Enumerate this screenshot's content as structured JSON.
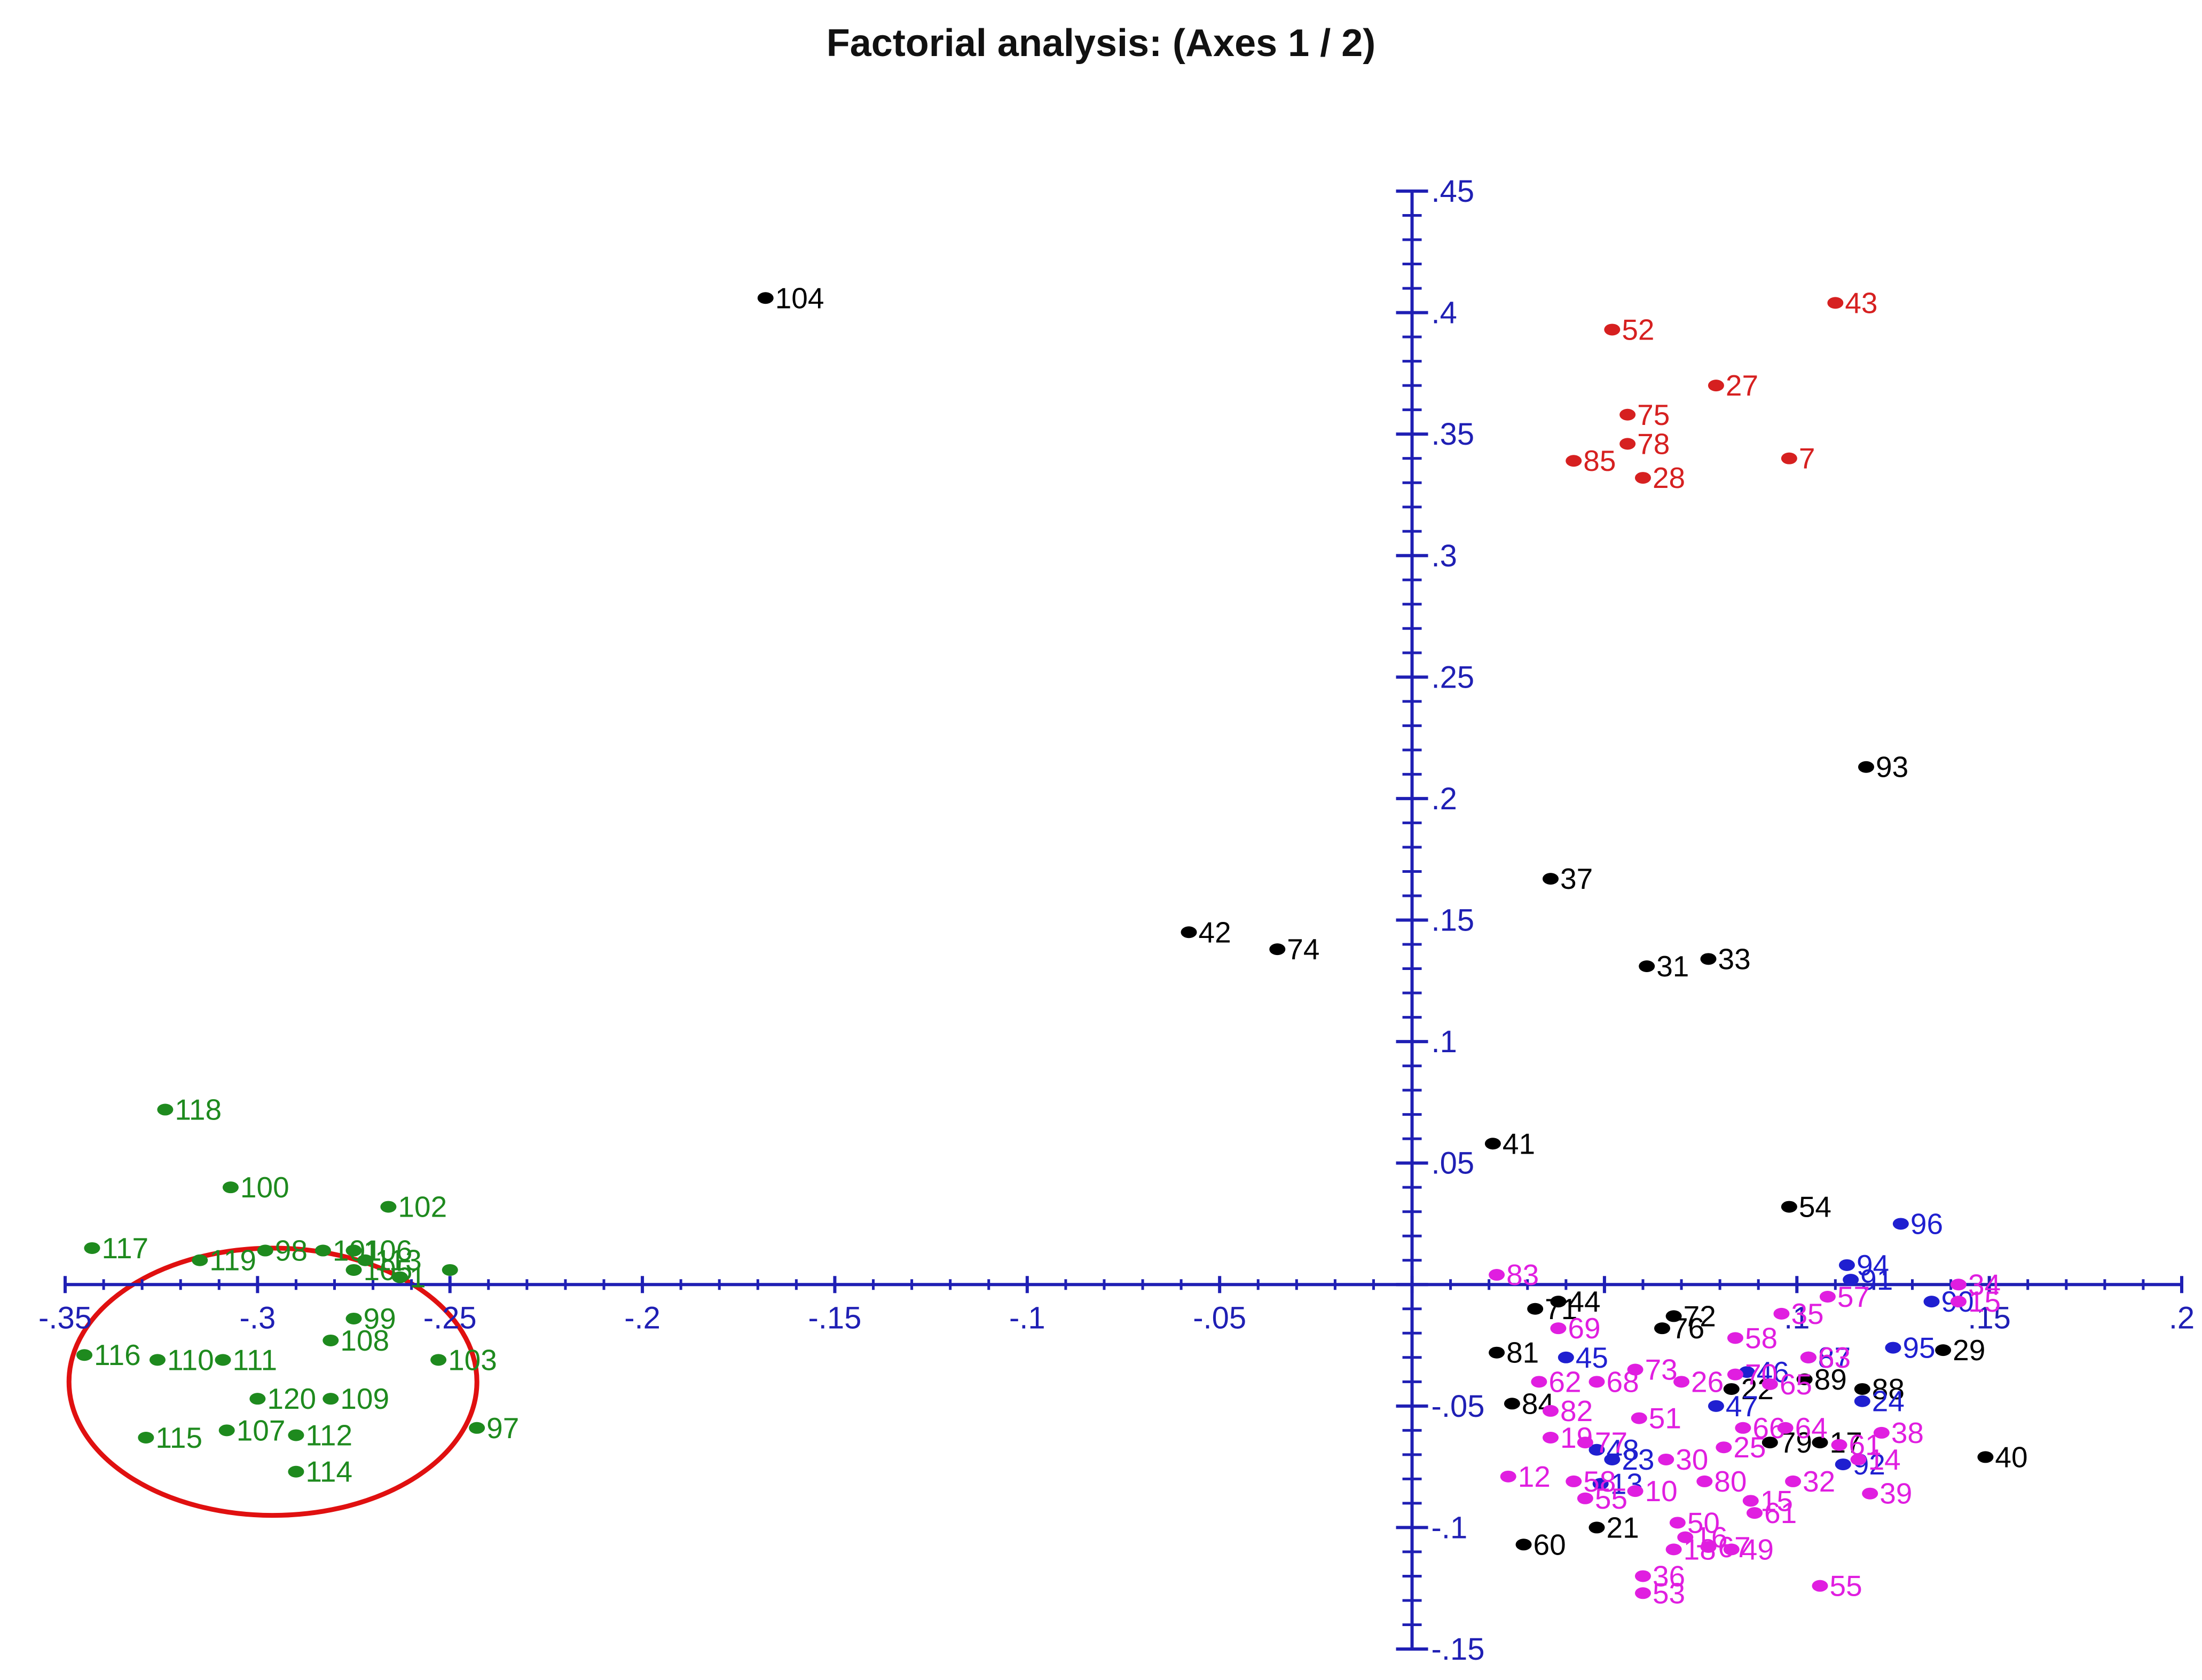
{
  "chart_data": {
    "type": "scatter",
    "title": "Factorial analysis: (Axes 1 / 2)",
    "xlabel": "",
    "ylabel": "",
    "xlim": [
      -0.35,
      0.2
    ],
    "ylim": [
      -0.15,
      0.45
    ],
    "x_ticks": [
      -0.35,
      -0.3,
      -0.25,
      -0.2,
      -0.15,
      -0.1,
      -0.05,
      0.1,
      0.15,
      0.2
    ],
    "x_tick_labels": [
      "-.35",
      "-.3",
      "-.25",
      "-.2",
      "-.15",
      "-.1",
      "-.05",
      ".1",
      ".15",
      ".2"
    ],
    "y_ticks": [
      -0.15,
      -0.1,
      -0.05,
      0.05,
      0.1,
      0.15,
      0.2,
      0.25,
      0.3,
      0.35,
      0.4,
      0.45
    ],
    "y_tick_labels": [
      "-.15",
      "-.1",
      "-.05",
      ".05",
      ".1",
      ".15",
      ".2",
      ".25",
      ".3",
      ".35",
      ".4",
      ".45"
    ],
    "grid": false,
    "legend": "none",
    "colors": {
      "axis": "#1f1fb4",
      "red": "#d62020",
      "green": "#1e8a1e",
      "black": "#000000",
      "blue": "#1f1fd0",
      "magenta": "#e01ee0",
      "circle": "#e01010"
    },
    "highlight_circle": {
      "cx": -0.296,
      "cy": -0.04,
      "rx": 0.053,
      "ry": 0.055
    },
    "series": [
      {
        "color": "red",
        "points": [
          {
            "x": 0.11,
            "y": 0.404,
            "label": "43"
          },
          {
            "x": 0.052,
            "y": 0.393,
            "label": "52"
          },
          {
            "x": 0.079,
            "y": 0.37,
            "label": "27"
          },
          {
            "x": 0.056,
            "y": 0.358,
            "label": "75"
          },
          {
            "x": 0.056,
            "y": 0.346,
            "label": "78"
          },
          {
            "x": 0.042,
            "y": 0.339,
            "label": "85"
          },
          {
            "x": 0.098,
            "y": 0.34,
            "label": "7"
          },
          {
            "x": 0.06,
            "y": 0.332,
            "label": "28"
          }
        ]
      },
      {
        "color": "black",
        "points": [
          {
            "x": -0.168,
            "y": 0.406,
            "label": "104"
          },
          {
            "x": 0.118,
            "y": 0.213,
            "label": "93"
          },
          {
            "x": 0.036,
            "y": 0.167,
            "label": "37"
          },
          {
            "x": -0.058,
            "y": 0.145,
            "label": "42"
          },
          {
            "x": -0.035,
            "y": 0.138,
            "label": "74"
          },
          {
            "x": 0.061,
            "y": 0.131,
            "label": "31"
          },
          {
            "x": 0.077,
            "y": 0.134,
            "label": "33"
          },
          {
            "x": 0.021,
            "y": 0.058,
            "label": "41"
          },
          {
            "x": 0.098,
            "y": 0.032,
            "label": "54"
          },
          {
            "x": 0.138,
            "y": -0.027,
            "label": "29"
          },
          {
            "x": 0.149,
            "y": -0.071,
            "label": "40"
          },
          {
            "x": 0.032,
            "y": -0.01,
            "label": "71"
          },
          {
            "x": 0.038,
            "y": -0.007,
            "label": "44"
          },
          {
            "x": 0.068,
            "y": -0.013,
            "label": "72"
          },
          {
            "x": 0.065,
            "y": -0.018,
            "label": "76"
          },
          {
            "x": 0.022,
            "y": -0.028,
            "label": "81"
          },
          {
            "x": 0.102,
            "y": -0.039,
            "label": "89"
          },
          {
            "x": 0.117,
            "y": -0.043,
            "label": "88"
          },
          {
            "x": 0.083,
            "y": -0.043,
            "label": "22"
          },
          {
            "x": 0.026,
            "y": -0.049,
            "label": "84"
          },
          {
            "x": 0.106,
            "y": -0.065,
            "label": "17"
          },
          {
            "x": 0.093,
            "y": -0.065,
            "label": "79"
          },
          {
            "x": 0.029,
            "y": -0.107,
            "label": "60"
          },
          {
            "x": 0.048,
            "y": -0.1,
            "label": "21"
          }
        ]
      },
      {
        "color": "green",
        "points": [
          {
            "x": -0.324,
            "y": 0.072,
            "label": "118"
          },
          {
            "x": -0.307,
            "y": 0.04,
            "label": "100"
          },
          {
            "x": -0.266,
            "y": 0.032,
            "label": "102"
          },
          {
            "x": -0.343,
            "y": 0.015,
            "label": "117"
          },
          {
            "x": -0.315,
            "y": 0.01,
            "label": "119"
          },
          {
            "x": -0.298,
            "y": 0.014,
            "label": "98"
          },
          {
            "x": -0.283,
            "y": 0.014,
            "label": "101"
          },
          {
            "x": -0.275,
            "y": 0.014,
            "label": "106"
          },
          {
            "x": -0.272,
            "y": 0.01,
            "label": "113"
          },
          {
            "x": -0.275,
            "y": 0.006,
            "label": "105"
          },
          {
            "x": -0.263,
            "y": 0.003,
            "label": "1"
          },
          {
            "x": -0.25,
            "y": 0.006,
            "label": ""
          },
          {
            "x": -0.275,
            "y": -0.014,
            "label": "99"
          },
          {
            "x": -0.281,
            "y": -0.023,
            "label": "108"
          },
          {
            "x": -0.345,
            "y": -0.029,
            "label": "116"
          },
          {
            "x": -0.326,
            "y": -0.031,
            "label": "110"
          },
          {
            "x": -0.309,
            "y": -0.031,
            "label": "111"
          },
          {
            "x": -0.253,
            "y": -0.031,
            "label": "103"
          },
          {
            "x": -0.3,
            "y": -0.047,
            "label": "120"
          },
          {
            "x": -0.281,
            "y": -0.047,
            "label": "109"
          },
          {
            "x": -0.308,
            "y": -0.06,
            "label": "107"
          },
          {
            "x": -0.29,
            "y": -0.062,
            "label": "112"
          },
          {
            "x": -0.329,
            "y": -0.063,
            "label": "115"
          },
          {
            "x": -0.243,
            "y": -0.059,
            "label": "97"
          },
          {
            "x": -0.29,
            "y": -0.077,
            "label": "114"
          }
        ]
      },
      {
        "color": "blue",
        "points": [
          {
            "x": 0.127,
            "y": 0.025,
            "label": "96"
          },
          {
            "x": 0.113,
            "y": 0.008,
            "label": "94"
          },
          {
            "x": 0.114,
            "y": 0.002,
            "label": "91"
          },
          {
            "x": 0.135,
            "y": -0.007,
            "label": "90"
          },
          {
            "x": 0.125,
            "y": -0.026,
            "label": "95"
          },
          {
            "x": 0.103,
            "y": -0.03,
            "label": "87"
          },
          {
            "x": 0.04,
            "y": -0.03,
            "label": "45"
          },
          {
            "x": 0.087,
            "y": -0.036,
            "label": "46"
          },
          {
            "x": 0.079,
            "y": -0.05,
            "label": "47"
          },
          {
            "x": 0.117,
            "y": -0.048,
            "label": "24"
          },
          {
            "x": 0.048,
            "y": -0.068,
            "label": "48"
          },
          {
            "x": 0.052,
            "y": -0.072,
            "label": "23"
          },
          {
            "x": 0.112,
            "y": -0.074,
            "label": "92"
          },
          {
            "x": 0.049,
            "y": -0.082,
            "label": "13"
          }
        ]
      },
      {
        "color": "magenta",
        "points": [
          {
            "x": 0.022,
            "y": 0.004,
            "label": "83"
          },
          {
            "x": 0.142,
            "y": 0.0,
            "label": "34"
          },
          {
            "x": 0.108,
            "y": -0.005,
            "label": "57"
          },
          {
            "x": 0.142,
            "y": -0.007,
            "label": "15"
          },
          {
            "x": 0.096,
            "y": -0.012,
            "label": "35"
          },
          {
            "x": 0.038,
            "y": -0.018,
            "label": "69"
          },
          {
            "x": 0.084,
            "y": -0.022,
            "label": "58"
          },
          {
            "x": 0.103,
            "y": -0.03,
            "label": "63"
          },
          {
            "x": 0.033,
            "y": -0.04,
            "label": "62"
          },
          {
            "x": 0.048,
            "y": -0.04,
            "label": "68"
          },
          {
            "x": 0.058,
            "y": -0.035,
            "label": "73"
          },
          {
            "x": 0.07,
            "y": -0.04,
            "label": "26"
          },
          {
            "x": 0.084,
            "y": -0.037,
            "label": "70"
          },
          {
            "x": 0.093,
            "y": -0.041,
            "label": "65"
          },
          {
            "x": 0.036,
            "y": -0.052,
            "label": "82"
          },
          {
            "x": 0.059,
            "y": -0.055,
            "label": "51"
          },
          {
            "x": 0.086,
            "y": -0.059,
            "label": "66"
          },
          {
            "x": 0.097,
            "y": -0.059,
            "label": "64"
          },
          {
            "x": 0.122,
            "y": -0.061,
            "label": "38"
          },
          {
            "x": 0.036,
            "y": -0.063,
            "label": "19"
          },
          {
            "x": 0.045,
            "y": -0.065,
            "label": "77"
          },
          {
            "x": 0.081,
            "y": -0.067,
            "label": "25"
          },
          {
            "x": 0.111,
            "y": -0.066,
            "label": "61"
          },
          {
            "x": 0.066,
            "y": -0.072,
            "label": "30"
          },
          {
            "x": 0.116,
            "y": -0.072,
            "label": "14"
          },
          {
            "x": 0.025,
            "y": -0.079,
            "label": "12"
          },
          {
            "x": 0.042,
            "y": -0.081,
            "label": "58"
          },
          {
            "x": 0.076,
            "y": -0.081,
            "label": "80"
          },
          {
            "x": 0.099,
            "y": -0.081,
            "label": "32"
          },
          {
            "x": 0.119,
            "y": -0.086,
            "label": "39"
          },
          {
            "x": 0.045,
            "y": -0.088,
            "label": "55"
          },
          {
            "x": 0.058,
            "y": -0.085,
            "label": "10"
          },
          {
            "x": 0.088,
            "y": -0.089,
            "label": "15"
          },
          {
            "x": 0.089,
            "y": -0.094,
            "label": "61"
          },
          {
            "x": 0.069,
            "y": -0.098,
            "label": "50"
          },
          {
            "x": 0.071,
            "y": -0.104,
            "label": "16"
          },
          {
            "x": 0.068,
            "y": -0.109,
            "label": "18"
          },
          {
            "x": 0.077,
            "y": -0.108,
            "label": "67"
          },
          {
            "x": 0.083,
            "y": -0.109,
            "label": "49"
          },
          {
            "x": 0.06,
            "y": -0.12,
            "label": "36"
          },
          {
            "x": 0.06,
            "y": -0.127,
            "label": "53"
          },
          {
            "x": 0.106,
            "y": -0.124,
            "label": "55"
          }
        ]
      }
    ]
  }
}
